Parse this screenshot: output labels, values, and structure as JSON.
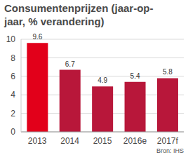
{
  "chart_data": {
    "type": "bar",
    "title": "Consumentenprijzen (jaar-op-jaar, % verandering)",
    "source": "Bron: IHS",
    "categories": [
      "2013",
      "2014",
      "2015",
      "2016e",
      "2017f"
    ],
    "values": [
      9.6,
      6.7,
      4.9,
      5.4,
      5.8
    ],
    "colors": [
      "#e2001a",
      "#b8173a",
      "#b8173a",
      "#b8173a",
      "#b8173a"
    ],
    "ylim": [
      0,
      10
    ],
    "yticks": [
      0,
      2,
      4,
      6,
      8,
      10
    ],
    "grid": true,
    "data_labels": true
  }
}
